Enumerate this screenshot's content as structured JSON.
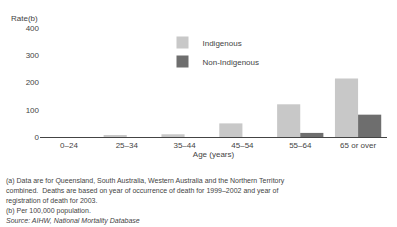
{
  "chart_data": {
    "type": "bar",
    "categories": [
      "0–24",
      "25–34",
      "35–44",
      "45–54",
      "55–64",
      "65 or over"
    ],
    "series": [
      {
        "name": "Indigenous",
        "color": "#c8c8c8",
        "values": [
          0,
          5,
          10,
          50,
          120,
          215
        ]
      },
      {
        "name": "Non-Ind­igenous",
        "color": "#6e6e6e",
        "values": [
          0,
          0,
          0,
          0,
          15,
          82
        ]
      }
    ],
    "xlabel": "Age (years)",
    "ylabel": "Rate(b)",
    "ylim": [
      0,
      400
    ],
    "yticks": [
      0,
      100,
      200,
      300,
      400
    ],
    "grid": false,
    "legend": "upper center",
    "annotations": [
      "(a) Data are for Queensland, South Australia, Western Australia and the Northern Territory",
      "combined.  Deaths are based on year of occurrence of death for 1999–2002 and year of",
      "registration of death for 2003.",
      "(b) Per 100,000 population."
    ],
    "source": "Source: AIHW, National Mortality Database"
  }
}
